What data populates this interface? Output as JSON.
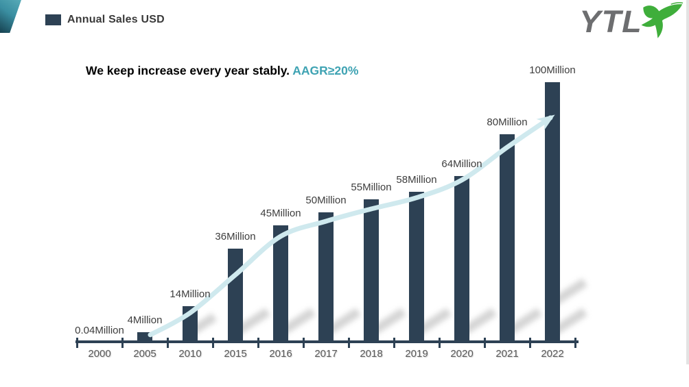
{
  "header": {
    "legend_label": "Annual Sales USD",
    "logo_text": "YTL"
  },
  "title": {
    "main": "We keep increase every year stably. ",
    "highlight": "AAGR≥20%"
  },
  "chart_data": {
    "type": "bar",
    "title": "Annual Sales USD",
    "categories": [
      "2000",
      "2005",
      "2010",
      "2015",
      "2016",
      "2017",
      "2018",
      "2019",
      "2020",
      "2021",
      "2022"
    ],
    "values": [
      0.04,
      4,
      14,
      36,
      45,
      50,
      55,
      58,
      64,
      80,
      100
    ],
    "unit": "Million",
    "labels": [
      "0.04Million",
      "4Million",
      "14Million",
      "36Million",
      "45Million",
      "50Million",
      "55Million",
      "58Million",
      "64Million",
      "80Million",
      "100Million"
    ],
    "xlabel": "",
    "ylabel": "",
    "legend_position": "top-left",
    "grid": false,
    "value_labels": "above-bars",
    "annotation": "light blue smooth rising trend arrow across bar tops"
  },
  "colors": {
    "bar": "#2d4154",
    "axis": "#2d4154",
    "trend_line": "#cfe9ee",
    "accent": "#3fa3b3",
    "logo_gray": "#6d6e70",
    "logo_green": "#3fae3b"
  }
}
